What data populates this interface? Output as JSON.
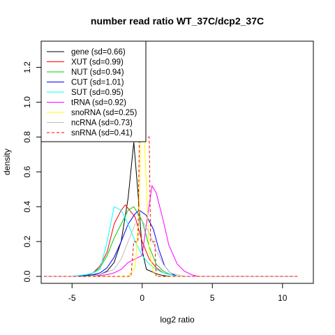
{
  "chart_data": {
    "type": "line",
    "title": "number read ratio WT_37C/dcp2_37C",
    "xlabel": "log2 ratio",
    "ylabel": "density",
    "xlim": [
      -7.2,
      12.2
    ],
    "ylim": [
      -0.04,
      1.35
    ],
    "x_ticks": [
      -5,
      0,
      5,
      10
    ],
    "x_tick_labels": [
      "-5",
      "0",
      "5",
      "10"
    ],
    "y_ticks": [
      0.0,
      0.2,
      0.4,
      0.6,
      0.8,
      1.0,
      1.2
    ],
    "y_tick_labels": [
      "0.0",
      "0.2",
      "0.4",
      "0.6",
      "0.8",
      "1.0",
      "1.2"
    ],
    "grid": false,
    "legend_position": "top-left",
    "series": [
      {
        "name": "gene (sd=0.66)",
        "color": "#000000",
        "dash": "solid",
        "x": [
          -7,
          -5,
          -4,
          -3,
          -2.5,
          -2,
          -1.5,
          -1,
          -0.6,
          -0.3,
          0,
          0.3,
          0.6,
          1,
          1.5,
          2,
          3,
          11
        ],
        "y": [
          0,
          0,
          0.005,
          0.01,
          0.03,
          0.08,
          0.2,
          0.45,
          0.77,
          0.48,
          0.15,
          0.04,
          0.03,
          0.015,
          0.005,
          0,
          0,
          0
        ]
      },
      {
        "name": "XUT (sd=0.99)",
        "color": "#ff0000",
        "dash": "solid",
        "x": [
          -7,
          -4.5,
          -4,
          -3.5,
          -3,
          -2.5,
          -2,
          -1.5,
          -1.2,
          -0.5,
          0,
          0.5,
          1,
          1.5,
          2,
          2.5,
          11
        ],
        "y": [
          0,
          0,
          0.005,
          0.02,
          0.06,
          0.14,
          0.3,
          0.38,
          0.41,
          0.34,
          0.2,
          0.1,
          0.05,
          0.02,
          0.01,
          0,
          0
        ]
      },
      {
        "name": "NUT (sd=0.94)",
        "color": "#00cd00",
        "dash": "solid",
        "x": [
          -7,
          -4.5,
          -4,
          -3.5,
          -3,
          -2.5,
          -2,
          -1.5,
          -1,
          -0.6,
          0,
          0.5,
          1,
          1.5,
          2,
          2.5,
          11
        ],
        "y": [
          0,
          0,
          0.005,
          0.02,
          0.05,
          0.12,
          0.22,
          0.3,
          0.38,
          0.4,
          0.32,
          0.17,
          0.07,
          0.03,
          0.01,
          0,
          0
        ]
      },
      {
        "name": "CUT (sd=1.01)",
        "color": "#0000ff",
        "dash": "solid",
        "x": [
          -7,
          -4.5,
          -4,
          -3.5,
          -3,
          -2.5,
          -2,
          -1.5,
          -1,
          -0.5,
          -0.2,
          0.3,
          0.8,
          1.2,
          1.6,
          2,
          2.5,
          11
        ],
        "y": [
          0,
          0,
          0.005,
          0.01,
          0.02,
          0.05,
          0.11,
          0.2,
          0.3,
          0.36,
          0.38,
          0.35,
          0.27,
          0.15,
          0.06,
          0.02,
          0,
          0
        ]
      },
      {
        "name": "SUT (sd=0.95)",
        "color": "#00ffff",
        "dash": "solid",
        "x": [
          -7,
          -5,
          -4.5,
          -4,
          -3.5,
          -3,
          -2.5,
          -2,
          -1.5,
          -1,
          -0.5,
          0,
          0.5,
          1,
          1.5,
          2,
          2.5,
          11
        ],
        "y": [
          0,
          0,
          0.005,
          0.01,
          0.02,
          0.04,
          0.2,
          0.4,
          0.38,
          0.3,
          0.2,
          0.12,
          0.07,
          0.04,
          0.02,
          0.01,
          0,
          0
        ]
      },
      {
        "name": "tRNA (sd=0.92)",
        "color": "#ff00ff",
        "dash": "solid",
        "x": [
          -7,
          -3.5,
          -3,
          -2.5,
          -2,
          -1.5,
          -1,
          -0.5,
          0,
          0.3,
          0.7,
          1,
          1.5,
          1.9,
          2.5,
          3,
          3.5,
          4,
          11
        ],
        "y": [
          0,
          0,
          0.005,
          0.01,
          0.02,
          0.04,
          0.08,
          0.1,
          0.12,
          0.3,
          0.52,
          0.48,
          0.32,
          0.18,
          0.07,
          0.03,
          0.01,
          0,
          0
        ]
      },
      {
        "name": "snoRNA (sd=0.25)",
        "color": "#ffff00",
        "dash": "solid",
        "x": [
          -7,
          -1,
          -0.5,
          -0.2,
          0,
          0.2,
          0.5,
          0.8,
          1.2,
          11
        ],
        "y": [
          0,
          0,
          0.05,
          0.4,
          1.31,
          0.7,
          0.15,
          0.02,
          0,
          0
        ]
      },
      {
        "name": "ncRNA (sd=0.73)",
        "color": "#bebebe",
        "dash": "solid",
        "x": [
          -7,
          -4,
          -3,
          -2,
          -1.5,
          -1,
          -0.5,
          0,
          0.5,
          1,
          1.5,
          2,
          3,
          11
        ],
        "y": [
          0,
          0,
          0.01,
          0.04,
          0.1,
          0.2,
          0.3,
          0.32,
          0.25,
          0.15,
          0.07,
          0.02,
          0,
          0
        ]
      },
      {
        "name": "snRNA (sd=0.41)",
        "color": "#ff0000",
        "dash": "dashed",
        "x": [
          -7,
          -0.8,
          -0.6,
          -0.3,
          -0.2,
          0.5,
          0.6,
          0.9,
          1.0,
          11.2
        ],
        "y": [
          0,
          0,
          0.2,
          0.2,
          0.8,
          0.8,
          0.2,
          0.2,
          0,
          0
        ]
      }
    ]
  }
}
